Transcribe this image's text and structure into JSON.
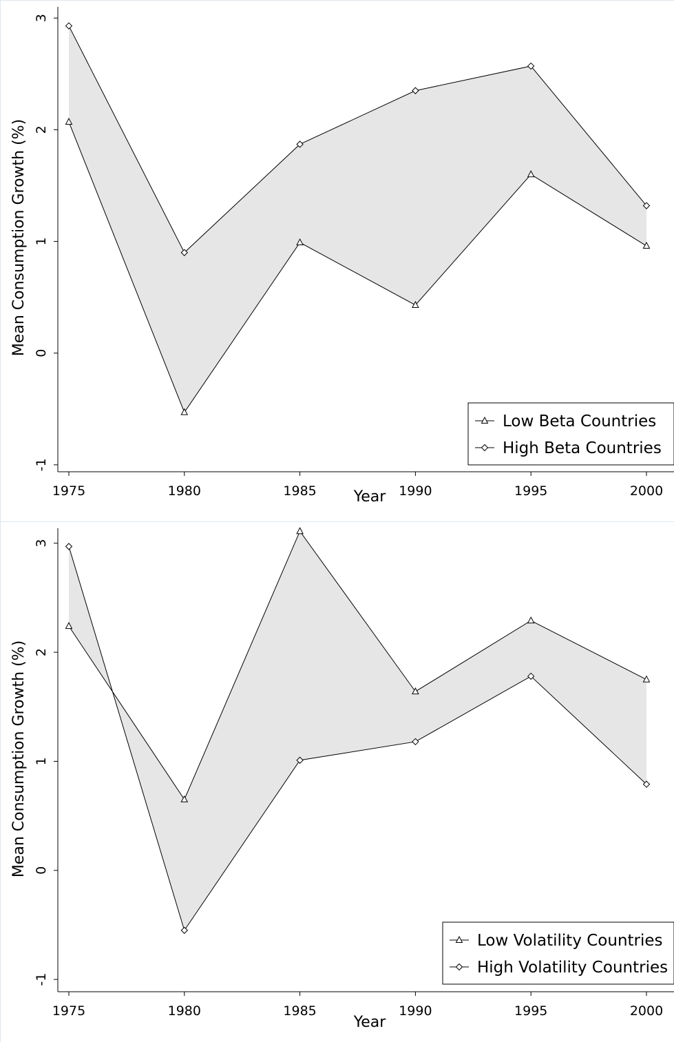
{
  "chart_data": [
    {
      "type": "line",
      "title": "",
      "xlabel": "Year",
      "ylabel": "Mean Consumption Growth (%)",
      "x": [
        1975,
        1980,
        1985,
        1990,
        1995,
        2000
      ],
      "xticks": [
        1975,
        1980,
        1985,
        1990,
        1995,
        2000
      ],
      "yticks": [
        -1,
        0,
        1,
        2,
        3
      ],
      "xlim": [
        1975,
        2000
      ],
      "ylim": [
        -1.05,
        3.1
      ],
      "shaded_between_series": true,
      "shade_color": "#e6e6e6",
      "grid": false,
      "legend_position": "bottom-right",
      "series": [
        {
          "name": "Low Beta Countries",
          "marker": "triangle",
          "values": [
            2.07,
            -0.53,
            0.99,
            0.43,
            1.6,
            0.96
          ]
        },
        {
          "name": "High Beta Countries",
          "marker": "diamond",
          "values": [
            2.93,
            0.9,
            1.87,
            2.35,
            2.57,
            1.32
          ]
        }
      ]
    },
    {
      "type": "line",
      "title": "",
      "xlabel": "Year",
      "ylabel": "Mean Consumption Growth (%)",
      "x": [
        1975,
        1980,
        1985,
        1990,
        1995,
        2000
      ],
      "xticks": [
        1975,
        1980,
        1985,
        1990,
        1995,
        2000
      ],
      "yticks": [
        -1,
        0,
        1,
        2,
        3
      ],
      "xlim": [
        1975,
        2000
      ],
      "ylim": [
        -1.1,
        3.15
      ],
      "shaded_between_series": true,
      "shade_color": "#e6e6e6",
      "grid": false,
      "legend_position": "bottom-right",
      "series": [
        {
          "name": "Low Volatility Countries",
          "marker": "triangle",
          "values": [
            2.24,
            0.65,
            3.11,
            1.64,
            2.29,
            1.75
          ]
        },
        {
          "name": "High Volatility Countries",
          "marker": "diamond",
          "values": [
            2.97,
            -0.55,
            1.01,
            1.18,
            1.78,
            0.79
          ]
        }
      ]
    }
  ]
}
